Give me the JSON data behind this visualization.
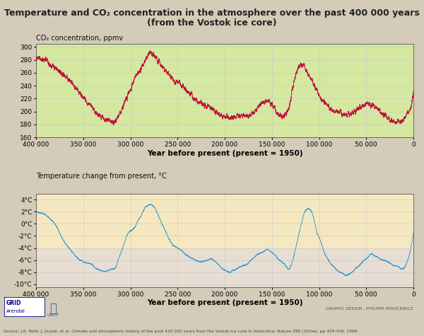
{
  "title_line1": "Temperature and CO₂ concentration in the atmosphere over the past 400 000 years",
  "title_line2": "(from the Vostok ice core)",
  "co2_ylabel": "CO₂ concentration, ppmv",
  "temp_ylabel": "Temperature change from present, °C",
  "xlabel": "Year before present (present = 1950)",
  "co2_ylim": [
    160,
    305
  ],
  "temp_ylim": [
    -10.5,
    5
  ],
  "co2_yticks": [
    160,
    180,
    200,
    220,
    240,
    260,
    280,
    300
  ],
  "temp_yticks": [
    -10,
    -8,
    -6,
    -4,
    -2,
    0,
    2,
    4
  ],
  "temp_yticklabels": [
    "-10°C",
    "-8°C",
    "-6°C",
    "-4°C",
    "-2°C",
    "0°C",
    "2°C",
    "4°C"
  ],
  "xlim": [
    400000,
    0
  ],
  "xticks": [
    400000,
    350000,
    300000,
    250000,
    200000,
    150000,
    100000,
    50000,
    0
  ],
  "xticklabels": [
    "400 000",
    "350 000",
    "300 000",
    "250 000",
    "200 000",
    "150 000",
    "100 000",
    "50 000",
    "0"
  ],
  "co2_color": "#c0143c",
  "temp_color": "#3399cc",
  "co2_bg": "#d4e8a0",
  "temp_bg_top": "#f5e8c0",
  "temp_bg_bottom": "#ddd8ee",
  "grid_color": "#c8c8c8",
  "fig_bg": "#d4cbb8",
  "title_color": "#222222",
  "source_text": "Source: J.R. Petit, J. Jouzel, et al. Climate and atmospheric history of the past 420 000 years from the Vostok ice core in Antarctica, Nature 399 (3/Une), pp 429-436, 1999.",
  "credit_text": "GRAPHIC DESIGN : PHILIPPE REKACEWICZ"
}
